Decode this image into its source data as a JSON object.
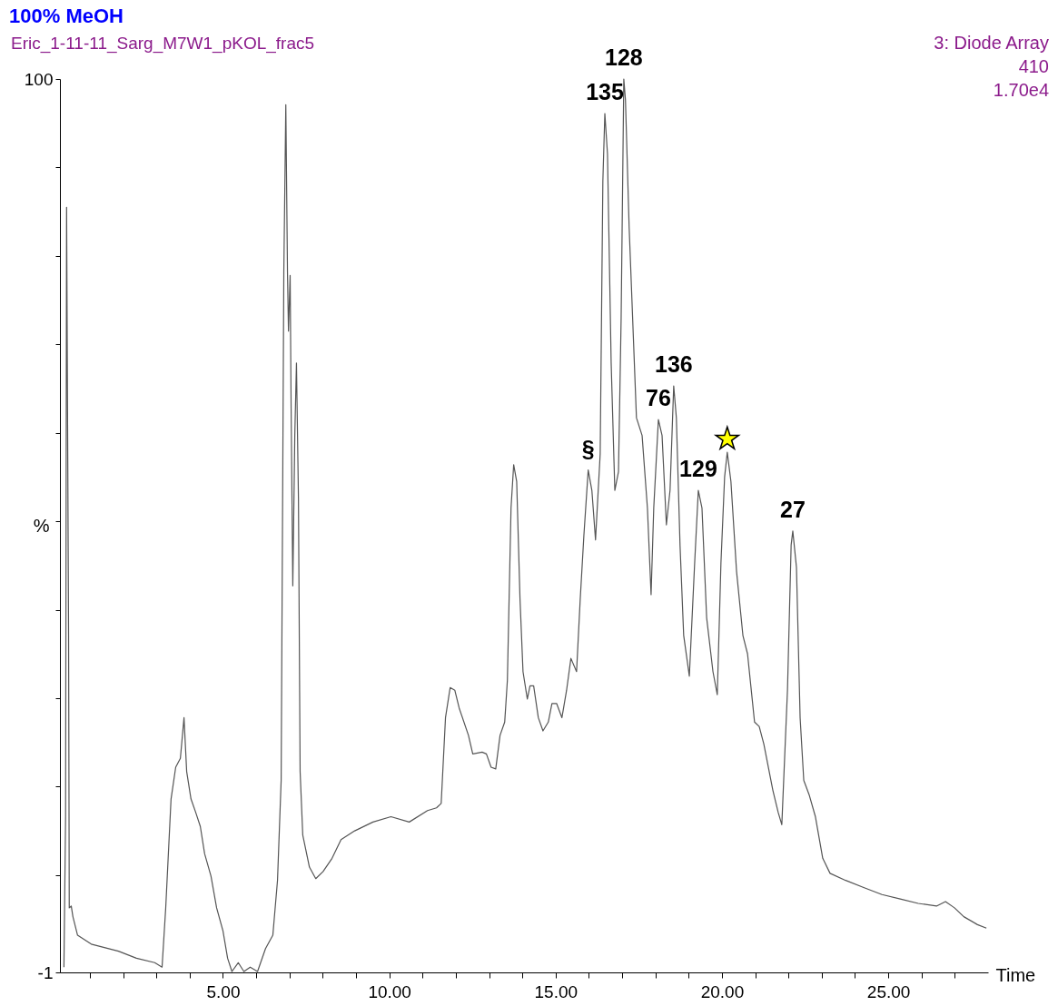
{
  "chart_data": {
    "type": "line",
    "title": "100% MeOH",
    "subtitle": "Eric_1-11-11_Sarg_M7W1_pKOL_frac5",
    "xlabel": "Time",
    "ylabel": "%",
    "xlim": [
      0.1,
      28.0
    ],
    "xticks": [
      {
        "value": 1,
        "label": null
      },
      {
        "value": 2,
        "label": null
      },
      {
        "value": 3,
        "label": null
      },
      {
        "value": 4,
        "label": null
      },
      {
        "value": 5,
        "label": "5.00"
      },
      {
        "value": 6,
        "label": null
      },
      {
        "value": 7,
        "label": null
      },
      {
        "value": 8,
        "label": null
      },
      {
        "value": 9,
        "label": null
      },
      {
        "value": 10,
        "label": "10.00"
      },
      {
        "value": 11,
        "label": null
      },
      {
        "value": 12,
        "label": null
      },
      {
        "value": 13,
        "label": null
      },
      {
        "value": 14,
        "label": null
      },
      {
        "value": 15,
        "label": "15.00"
      },
      {
        "value": 16,
        "label": null
      },
      {
        "value": 17,
        "label": null
      },
      {
        "value": 18,
        "label": null
      },
      {
        "value": 19,
        "label": null
      },
      {
        "value": 20,
        "label": "20.00"
      },
      {
        "value": 21,
        "label": null
      },
      {
        "value": 22,
        "label": null
      },
      {
        "value": 23,
        "label": null
      },
      {
        "value": 24,
        "label": null
      },
      {
        "value": 25,
        "label": "25.00"
      },
      {
        "value": 26,
        "label": null
      },
      {
        "value": 27,
        "label": null
      }
    ],
    "ylim": [
      -1,
      100
    ],
    "yticks": [
      -1,
      {
        "value": 10,
        "label": null
      },
      {
        "value": 20,
        "label": null
      },
      {
        "value": 30,
        "label": null
      },
      {
        "value": 40,
        "label": null
      },
      {
        "value": 50,
        "label": null
      },
      {
        "value": 60,
        "label": null
      },
      {
        "value": 70,
        "label": null
      },
      {
        "value": 80,
        "label": null
      },
      {
        "value": 90,
        "label": null
      },
      100
    ],
    "grid": false,
    "series": [
      {
        "color": "#555555",
        "x": [
          0.22,
          0.27,
          0.3,
          0.36,
          0.38,
          0.44,
          0.49,
          0.63,
          1.04,
          1.86,
          2.4,
          2.95,
          3.17,
          3.28,
          3.44,
          3.58,
          3.72,
          3.83,
          3.91,
          4.04,
          4.18,
          4.32,
          4.45,
          4.64,
          4.81,
          5.0,
          5.14,
          5.27,
          5.46,
          5.63,
          5.82,
          6.04,
          6.28,
          6.5,
          6.64,
          6.75,
          6.83,
          6.89,
          6.94,
          6.97,
          7.02,
          7.05,
          7.1,
          7.16,
          7.21,
          7.27,
          7.32,
          7.4,
          7.6,
          7.79,
          8.01,
          8.28,
          8.55,
          8.96,
          9.51,
          10.05,
          10.6,
          11.15,
          11.42,
          11.56,
          11.69,
          11.83,
          11.97,
          12.1,
          12.38,
          12.51,
          12.79,
          12.92,
          13.06,
          13.2,
          13.33,
          13.47,
          13.55,
          13.66,
          13.74,
          13.83,
          13.93,
          14.02,
          14.15,
          14.23,
          14.34,
          14.48,
          14.62,
          14.78,
          14.89,
          15.03,
          15.19,
          15.33,
          15.46,
          15.63,
          15.74,
          15.85,
          15.98,
          16.09,
          16.2,
          16.34,
          16.42,
          16.48,
          16.56,
          16.67,
          16.78,
          16.89,
          16.97,
          17.05,
          17.1,
          17.21,
          17.43,
          17.6,
          17.76,
          17.87,
          17.95,
          18.09,
          18.2,
          18.33,
          18.44,
          18.55,
          18.63,
          18.74,
          18.85,
          19.02,
          19.18,
          19.29,
          19.4,
          19.54,
          19.73,
          19.86,
          19.97,
          20.08,
          20.16,
          20.27,
          20.44,
          20.63,
          20.77,
          20.98,
          21.12,
          21.26,
          21.53,
          21.69,
          21.8,
          21.97,
          22.08,
          22.13,
          22.24,
          22.35,
          22.46,
          22.62,
          22.81,
          23.03,
          23.25,
          23.72,
          24.26,
          24.81,
          25.36,
          25.9,
          26.45,
          26.72,
          26.99,
          27.27,
          27.68,
          27.95
        ],
        "values": [
          -0.4,
          16.6,
          85.5,
          37.1,
          6.3,
          6.5,
          5.3,
          3.2,
          2.2,
          1.4,
          0.6,
          0.1,
          -0.4,
          6.3,
          18.6,
          22.2,
          23.2,
          27.8,
          21.7,
          18.6,
          17.1,
          15.5,
          12.4,
          9.9,
          6.3,
          3.7,
          0.6,
          -0.9,
          0.1,
          -0.9,
          -0.4,
          -0.9,
          1.7,
          3.2,
          9.4,
          20.7,
          78.1,
          97.1,
          78.1,
          71.5,
          77.8,
          62.7,
          42.7,
          59.7,
          67.9,
          52.5,
          21.7,
          14.5,
          10.9,
          9.6,
          10.4,
          11.9,
          14.0,
          15.0,
          16.0,
          16.6,
          16.0,
          17.3,
          17.6,
          18.1,
          27.8,
          31.2,
          30.9,
          28.9,
          25.8,
          23.7,
          23.9,
          23.7,
          22.2,
          22.0,
          25.8,
          27.3,
          32.0,
          51.5,
          56.4,
          54.5,
          41.2,
          33.0,
          29.9,
          31.4,
          31.4,
          27.8,
          26.3,
          27.3,
          29.4,
          29.4,
          27.8,
          30.9,
          34.5,
          33.0,
          41.2,
          48.4,
          55.8,
          53.5,
          47.9,
          57.6,
          88.4,
          96.1,
          91.5,
          67.9,
          53.5,
          55.6,
          73.0,
          100,
          97.6,
          83.3,
          61.7,
          59.7,
          51.5,
          41.7,
          51.5,
          61.5,
          59.7,
          49.6,
          53.5,
          65.3,
          61.7,
          47.3,
          37.1,
          32.5,
          45.3,
          53.5,
          51.5,
          39.1,
          33.0,
          30.4,
          45.3,
          55.0,
          57.8,
          54.5,
          44.3,
          37.1,
          35.0,
          27.3,
          26.8,
          24.8,
          19.6,
          17.1,
          15.7,
          30.9,
          47.3,
          48.9,
          44.8,
          27.8,
          20.7,
          19.1,
          16.6,
          11.9,
          10.2,
          9.4,
          8.6,
          7.8,
          7.3,
          6.8,
          6.5,
          7.0,
          6.3,
          5.3,
          4.4,
          4.0
        ]
      },
      {
        "type": "scatter",
        "color": "#ffff00",
        "marker": "star",
        "x": [
          20.16
        ],
        "values": [
          59.3
        ]
      }
    ],
    "annotations": [
      "3: Diode Array",
      "410",
      "1.70e4",
      {
        "text": "128",
        "x": 17.05,
        "y": 100
      },
      {
        "text": "135",
        "x": 16.48,
        "y": 96.1
      },
      {
        "text": "§",
        "x": 15.98,
        "y": 55.8
      },
      {
        "text": "76",
        "x": 18.09,
        "y": 61.5
      },
      {
        "text": "136",
        "x": 18.55,
        "y": 65.3
      },
      {
        "text": "129",
        "x": 19.29,
        "y": 53.5
      },
      {
        "text": "27",
        "x": 22.13,
        "y": 48.9
      }
    ]
  }
}
